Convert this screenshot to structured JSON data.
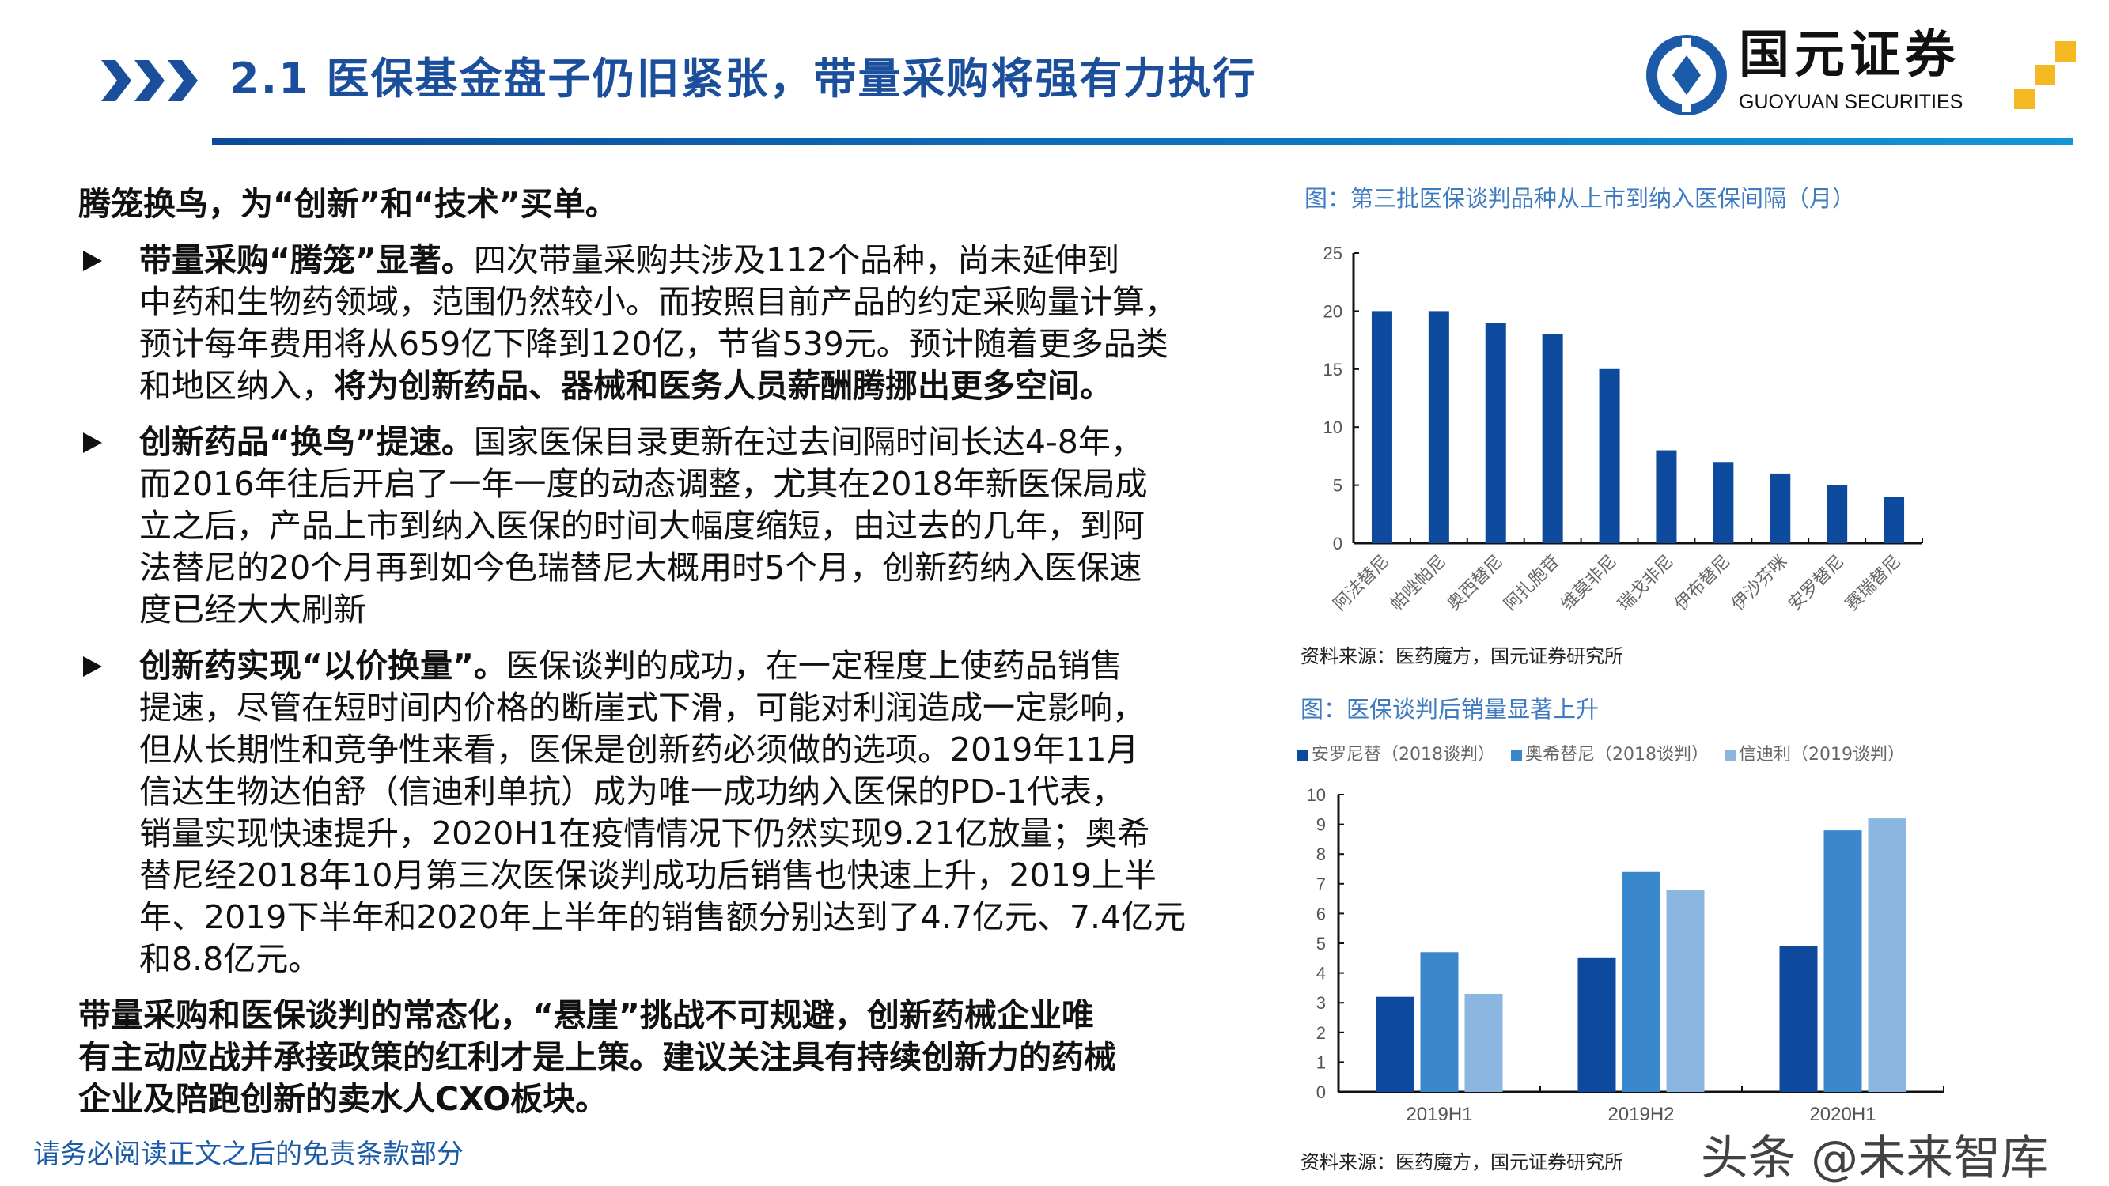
{
  "header": {
    "title": "2.1 医保基金盘子仍旧紧张，带量采购将强有力执行",
    "logo_cn": "国元证券",
    "logo_en": "GUOYUAN SECURITIES",
    "brand_color": "#1b4f9c",
    "logo_accent": "#f4b823"
  },
  "body": {
    "intro": [
      [
        {
          "text": "腾笼换鸟，为“创新”和“技术”买单。",
          "bold": true
        }
      ]
    ],
    "bullets": [
      [
        [
          {
            "text": "带量采购“腾笼”显著。",
            "bold": true
          },
          {
            "text": "四次带量采购共涉及112个品种，尚未延伸到",
            "bold": false
          }
        ],
        [
          {
            "text": "中药和生物药领域，范围仍然较小。而按照目前产品的约定采购量计算，",
            "bold": false
          }
        ],
        [
          {
            "text": "预计每年费用将从659亿下降到120亿，节省539元。预计随着更多品类",
            "bold": false
          }
        ],
        [
          {
            "text": "和地区纳入，",
            "bold": false
          },
          {
            "text": "将为创新药品、器械和医务人员薪酬腾挪出更多空间。",
            "bold": true
          }
        ]
      ],
      [
        [
          {
            "text": "创新药品“换鸟”提速。",
            "bold": true
          },
          {
            "text": "国家医保目录更新在过去间隔时间长达4-8年，",
            "bold": false
          }
        ],
        [
          {
            "text": "而2016年往后开启了一年一度的动态调整，尤其在2018年新医保局成",
            "bold": false
          }
        ],
        [
          {
            "text": "立之后，产品上市到纳入医保的时间大幅度缩短，由过去的几年，到阿",
            "bold": false
          }
        ],
        [
          {
            "text": "法替尼的20个月再到如今色瑞替尼大概用时5个月，创新药纳入医保速",
            "bold": false
          }
        ],
        [
          {
            "text": "度已经大大刷新",
            "bold": false
          }
        ]
      ],
      [
        [
          {
            "text": "创新药实现“以价换量”。",
            "bold": true
          },
          {
            "text": "医保谈判的成功，在一定程度上使药品销售",
            "bold": false
          }
        ],
        [
          {
            "text": "提速，尽管在短时间内价格的断崖式下滑，可能对利润造成一定影响，",
            "bold": false
          }
        ],
        [
          {
            "text": "但从长期性和竞争性来看，医保是创新药必须做的选项。2019年11月",
            "bold": false
          }
        ],
        [
          {
            "text": "信达生物达伯舒（信迪利单抗）成为唯一成功纳入医保的PD-1代表，",
            "bold": false
          }
        ],
        [
          {
            "text": "销量实现快速提升，2020H1在疫情情况下仍然实现9.21亿放量；奥希",
            "bold": false
          }
        ],
        [
          {
            "text": "替尼经2018年10月第三次医保谈判成功后销售也快速上升，2019上半",
            "bold": false
          }
        ],
        [
          {
            "text": "年、2019下半年和2020年上半年的销售额分别达到了4.7亿元、7.4亿元",
            "bold": false
          }
        ],
        [
          {
            "text": "和8.8亿元。",
            "bold": false
          }
        ]
      ]
    ],
    "conclusion": [
      [
        {
          "text": "带量采购和医保谈判的常态化，“悬崖”挑战不可规避，创新药械企业唯",
          "bold": true
        }
      ],
      [
        {
          "text": "有主动应战并承接政策的红利才是上策。建议关注具有持续创新力的药械",
          "bold": true
        }
      ],
      [
        {
          "text": "企业及陪跑创新的卖水人CXO板块。",
          "bold": true
        }
      ]
    ]
  },
  "footer": {
    "disclaimer": "请务必阅读正文之后的免责条款部分",
    "watermark": "头条 @未来智库"
  },
  "chart_data": [
    {
      "type": "bar",
      "title": "图：第三批医保谈判品种从上市到纳入医保间隔（月）",
      "source": "资料来源：医药魔方，国元证券研究所",
      "categories": [
        "阿法替尼",
        "帕唑帕尼",
        "奥西替尼",
        "阿扎胞苷",
        "维莫非尼",
        "瑞戈非尼",
        "伊布替尼",
        "伊沙芬咪",
        "安罗替尼",
        "赛瑞替尼"
      ],
      "values": [
        20,
        20,
        19,
        18,
        15,
        8,
        7,
        6,
        5,
        4
      ],
      "ylim": [
        0,
        25
      ],
      "yticks": [
        0,
        5,
        10,
        15,
        20,
        25
      ],
      "grid": false,
      "color": "#0d4a9e"
    },
    {
      "type": "bar",
      "title": "图：医保谈判后销量显著上升",
      "source": "资料来源：医药魔方，国元证券研究所",
      "categories": [
        "2019H1",
        "2019H2",
        "2020H1"
      ],
      "series": [
        {
          "name": "安罗尼替（2018谈判）",
          "values": [
            3.2,
            4.5,
            4.9
          ],
          "color": "#0d4a9e"
        },
        {
          "name": "奥希替尼（2018谈判）",
          "values": [
            4.7,
            7.4,
            8.8
          ],
          "color": "#3a87cc"
        },
        {
          "name": "信迪利（2019谈判）",
          "values": [
            3.3,
            6.8,
            9.2
          ],
          "color": "#8ab6e0"
        }
      ],
      "ylim": [
        0,
        10
      ],
      "yticks": [
        0,
        1,
        2,
        3,
        4,
        5,
        6,
        7,
        8,
        9,
        10
      ],
      "grid": false,
      "legend": "top"
    }
  ]
}
